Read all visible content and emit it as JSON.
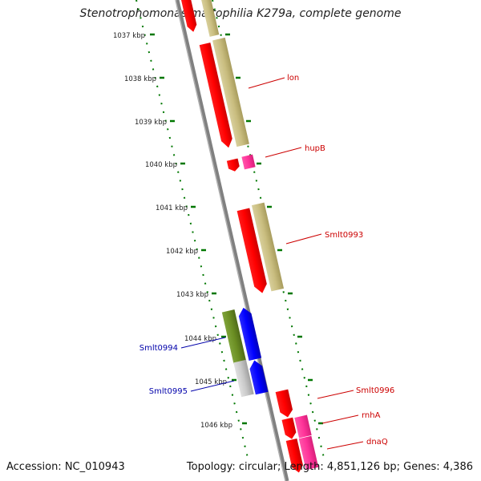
{
  "title": "Stenotrophomonas maltophilia K279a, complete genome",
  "footer": {
    "accession": "Accession: NC_010943",
    "summary": "Topology: circular; Length: 4,851,126 bp; Genes: 4,386"
  },
  "scale_labels": [
    "1037 kbp",
    "1038 kbp",
    "1039 kbp",
    "1040 kbp",
    "1041 kbp",
    "1042 kbp",
    "1043 kbp",
    "1044 kbp",
    "1045 kbp",
    "1046 kbp"
  ],
  "gene_labels": {
    "lon": "lon",
    "hupB": "hupB",
    "Smlt0993": "Smlt0993",
    "Smlt0994": "Smlt0994",
    "Smlt0995": "Smlt0995",
    "Smlt0996": "Smlt0996",
    "rnhA": "rnhA",
    "dnaQ": "dnaQ"
  },
  "colors": {
    "cds_forward": "#ff0000",
    "cds_reverse": "#0000ff",
    "gene_forward": "#c8bc7c",
    "gene_reverse": "#6b8e23",
    "pseudo_pink": "#ff3399",
    "pseudo_gray": "#c0c0c0",
    "label_red": "#cc0000",
    "label_blue": "#0000aa",
    "scale_green": "#007700",
    "backbone": "#808080"
  }
}
